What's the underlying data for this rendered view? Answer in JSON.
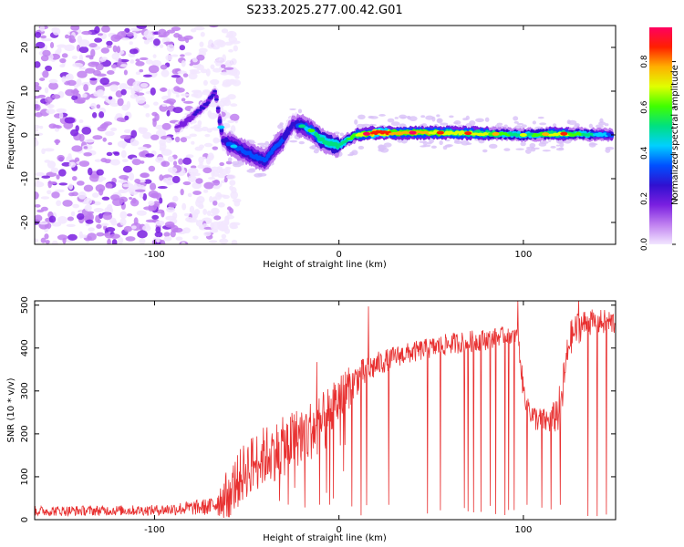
{
  "title": "S233.2025.277.00.42.G01",
  "chart_data": [
    {
      "type": "heatmap",
      "xlabel": "Height of straight line (km)",
      "ylabel": "Frequency (Hz)",
      "xlim": [
        -165,
        150
      ],
      "ylim": [
        -25,
        25
      ],
      "xticks": [
        -100,
        0,
        100
      ],
      "xtick_labels": [
        "-100",
        "0",
        "100"
      ],
      "yticks": [
        -20,
        -10,
        0,
        10,
        20
      ],
      "ytick_labels": [
        "-20",
        "-10",
        "0",
        "10",
        "20"
      ],
      "colorbar": {
        "label": "Normalized spectral amplitude",
        "range": [
          0,
          0.95
        ],
        "ticks": [
          0,
          0.2,
          0.4,
          0.6,
          0.8
        ],
        "tick_labels": [
          "0.0",
          "0.2",
          "0.4",
          "0.6",
          "0.8"
        ],
        "colors": [
          "#f2e6ff",
          "#c080f0",
          "#7a1fe0",
          "#3010d0",
          "#0050ff",
          "#00d0ff",
          "#00e080",
          "#40ff00",
          "#e0ff00",
          "#ffb000",
          "#ff2000",
          "#ff0060"
        ]
      },
      "ridge": {
        "description": "dominant frequency ridge vs height",
        "x": [
          -88,
          -80,
          -72,
          -67,
          -63,
          -60,
          -55,
          -50,
          -45,
          -40,
          -35,
          -30,
          -25,
          -20,
          -15,
          -10,
          -5,
          0,
          5,
          10,
          20,
          40,
          60,
          80,
          100,
          120,
          148
        ],
        "y": [
          1.5,
          4,
          7,
          10,
          -1,
          -2,
          -3,
          -4,
          -5,
          -6,
          -3,
          -1,
          2.5,
          2,
          1,
          -1,
          -2,
          -2.5,
          -1,
          0,
          0.5,
          0.5,
          0.5,
          0.3,
          0,
          0.3,
          0
        ],
        "amplitude": [
          0.2,
          0.25,
          0.3,
          0.3,
          0.3,
          0.35,
          0.35,
          0.4,
          0.4,
          0.35,
          0.35,
          0.35,
          0.3,
          0.4,
          0.5,
          0.55,
          0.55,
          0.55,
          0.6,
          0.7,
          0.9,
          0.8,
          0.75,
          0.7,
          0.55,
          0.75,
          0.4
        ]
      },
      "noise_region": {
        "x": [
          -165,
          -65
        ],
        "y": [
          -25,
          25
        ],
        "amplitude_max": 0.2
      }
    },
    {
      "type": "line",
      "xlabel": "Height of straight line (km)",
      "ylabel": "SNR (10 * v/v)",
      "xlim": [
        -165,
        150
      ],
      "ylim": [
        0,
        510
      ],
      "xticks": [
        -100,
        0,
        100
      ],
      "xtick_labels": [
        "-100",
        "0",
        "100"
      ],
      "yticks": [
        0,
        100,
        200,
        300,
        400,
        500
      ],
      "ytick_labels": [
        "0",
        "100",
        "200",
        "300",
        "400",
        "500"
      ],
      "color": "#e83030",
      "envelope": {
        "x": [
          -165,
          -100,
          -70,
          -60,
          -50,
          -40,
          -30,
          -20,
          -10,
          0,
          10,
          20,
          30,
          40,
          50,
          60,
          70,
          80,
          90,
          97,
          100,
          105,
          110,
          115,
          120,
          125,
          130,
          135,
          140,
          150
        ],
        "y": [
          20,
          22,
          30,
          60,
          120,
          150,
          170,
          200,
          220,
          280,
          330,
          360,
          380,
          390,
          400,
          410,
          415,
          420,
          430,
          430,
          300,
          240,
          230,
          230,
          260,
          420,
          450,
          460,
          460,
          460
        ],
        "amp": [
          12,
          12,
          20,
          60,
          70,
          70,
          70,
          70,
          70,
          60,
          40,
          30,
          25,
          25,
          25,
          25,
          25,
          25,
          20,
          20,
          30,
          30,
          30,
          30,
          60,
          40,
          40,
          30,
          30,
          30
        ]
      },
      "spikes": {
        "down": [
          -5,
          7,
          12,
          15,
          27,
          48,
          55,
          68,
          70,
          73,
          77,
          82,
          85,
          90,
          92,
          95,
          97,
          102,
          110,
          115,
          120,
          135,
          140,
          145
        ],
        "up": [
          -12,
          16,
          97,
          130
        ]
      }
    }
  ]
}
